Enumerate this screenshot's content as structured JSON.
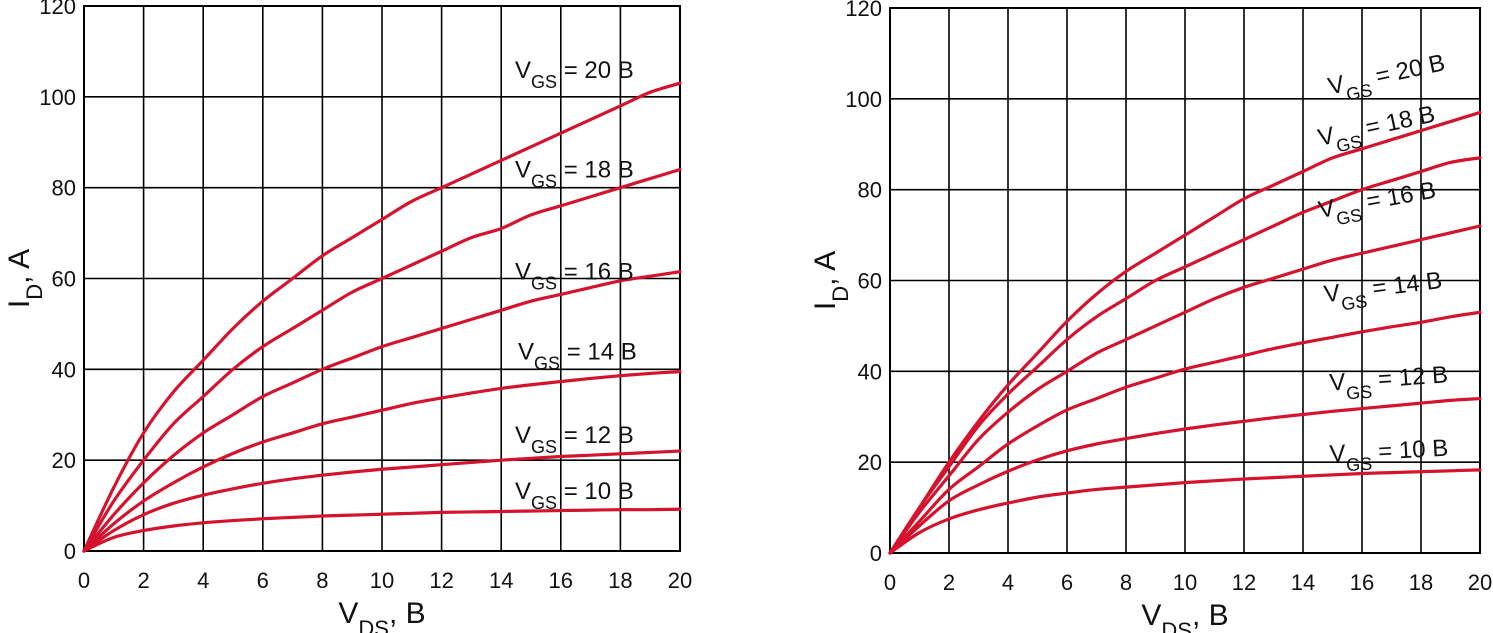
{
  "chart_data": [
    {
      "type": "line",
      "xlabel": "V",
      "xlabel_sub": "DS",
      "xlabel_unit": ", B",
      "ylabel": "I",
      "ylabel_sub": "D",
      "ylabel_unit": ", A",
      "xlim": [
        0,
        20
      ],
      "ylim": [
        0,
        120
      ],
      "x_ticks": [
        "0",
        "2",
        "4",
        "6",
        "8",
        "10",
        "12",
        "14",
        "16",
        "18",
        "20"
      ],
      "y_ticks": [
        "0",
        "20",
        "40",
        "60",
        "80",
        "100",
        "120"
      ],
      "grid": true,
      "line_color": "#d4132e",
      "series": [
        {
          "name": "V_GS = 20 B",
          "label_main": "V",
          "label_sub": "GS",
          "label_rest": " = 20 B",
          "x": [
            0,
            1,
            2,
            3,
            4,
            5,
            6,
            7,
            8,
            9,
            10,
            11,
            12,
            13,
            14,
            15,
            16,
            17,
            18,
            19,
            20
          ],
          "y": [
            0,
            14,
            26,
            35,
            42,
            49,
            55,
            60,
            65,
            69,
            73,
            77,
            80,
            83,
            86,
            89,
            92,
            95,
            98,
            101,
            103
          ]
        },
        {
          "name": "V_GS = 18 B",
          "label_main": "V",
          "label_sub": "GS",
          "label_rest": " = 18 B",
          "x": [
            0,
            1,
            2,
            3,
            4,
            5,
            6,
            7,
            8,
            9,
            10,
            11,
            12,
            13,
            14,
            15,
            16,
            17,
            18,
            19,
            20
          ],
          "y": [
            0,
            11,
            20,
            28,
            34,
            40,
            45,
            49,
            53,
            57,
            60,
            63,
            66,
            69,
            71,
            74,
            76,
            78,
            80,
            82,
            84
          ]
        },
        {
          "name": "V_GS = 16 B",
          "label_main": "V",
          "label_sub": "GS",
          "label_rest": " = 16 B",
          "x": [
            0,
            1,
            2,
            3,
            4,
            5,
            6,
            7,
            8,
            9,
            10,
            11,
            12,
            13,
            14,
            15,
            16,
            17,
            18,
            19,
            20
          ],
          "y": [
            0,
            8,
            15,
            21,
            26,
            30,
            34,
            37,
            40,
            42.5,
            45,
            47,
            49,
            51,
            53,
            55,
            56.5,
            58,
            59.5,
            60.5,
            61.5
          ]
        },
        {
          "name": "V_GS = 14 B",
          "label_main": "V",
          "label_sub": "GS",
          "label_rest": " = 14 B",
          "x": [
            0,
            1,
            2,
            3,
            4,
            5,
            6,
            7,
            8,
            9,
            10,
            11,
            12,
            13,
            14,
            15,
            16,
            17,
            18,
            19,
            20
          ],
          "y": [
            0,
            6,
            11,
            15,
            18.5,
            21.5,
            24,
            26,
            28,
            29.5,
            31,
            32.5,
            33.7,
            34.8,
            35.8,
            36.6,
            37.3,
            38,
            38.6,
            39.1,
            39.5
          ]
        },
        {
          "name": "V_GS = 12 B",
          "label_main": "V",
          "label_sub": "GS",
          "label_rest": " = 12 B",
          "x": [
            0,
            1,
            2,
            3,
            4,
            5,
            6,
            7,
            8,
            9,
            10,
            11,
            12,
            13,
            14,
            15,
            16,
            17,
            18,
            19,
            20
          ],
          "y": [
            0,
            4.5,
            8,
            10.5,
            12.3,
            13.7,
            14.9,
            15.9,
            16.7,
            17.4,
            18,
            18.5,
            19,
            19.5,
            20,
            20.4,
            20.8,
            21.1,
            21.4,
            21.7,
            22
          ]
        },
        {
          "name": "V_GS = 10 B",
          "label_main": "V",
          "label_sub": "GS",
          "label_rest": " = 10 B",
          "x": [
            0,
            1,
            2,
            3,
            4,
            5,
            6,
            7,
            8,
            9,
            10,
            11,
            12,
            13,
            14,
            15,
            16,
            17,
            18,
            19,
            20
          ],
          "y": [
            0,
            3,
            4.5,
            5.5,
            6.2,
            6.7,
            7.1,
            7.4,
            7.7,
            7.9,
            8.1,
            8.3,
            8.5,
            8.6,
            8.7,
            8.8,
            8.9,
            9,
            9.1,
            9.1,
            9.2
          ]
        }
      ]
    },
    {
      "type": "line",
      "xlabel": "V",
      "xlabel_sub": "DS",
      "xlabel_unit": ", B",
      "ylabel": "I",
      "ylabel_sub": "D",
      "ylabel_unit": ", A",
      "xlim": [
        0,
        20
      ],
      "ylim": [
        0,
        120
      ],
      "x_ticks": [
        "0",
        "2",
        "4",
        "6",
        "8",
        "10",
        "12",
        "14",
        "16",
        "18",
        "20"
      ],
      "y_ticks": [
        "0",
        "20",
        "40",
        "60",
        "80",
        "100",
        "120"
      ],
      "grid": true,
      "line_color": "#d4132e",
      "series": [
        {
          "name": "V_GS = 20 B",
          "label_main": "V",
          "label_sub": "GS",
          "label_rest": " = 20 B",
          "x": [
            0,
            1,
            2,
            3,
            4,
            5,
            6,
            7,
            8,
            9,
            10,
            11,
            12,
            13,
            14,
            15,
            16,
            17,
            18,
            19,
            20
          ],
          "y": [
            0,
            10,
            20,
            29,
            37,
            44,
            51,
            57,
            62,
            66,
            70,
            74,
            78,
            81,
            84,
            87,
            89,
            91,
            93,
            95,
            97
          ]
        },
        {
          "name": "V_GS = 18 B",
          "label_main": "V",
          "label_sub": "GS",
          "label_rest": " = 18 B",
          "x": [
            0,
            1,
            2,
            3,
            4,
            5,
            6,
            7,
            8,
            9,
            10,
            11,
            12,
            13,
            14,
            15,
            16,
            17,
            18,
            19,
            20
          ],
          "y": [
            0,
            10,
            19,
            28,
            35,
            41,
            47,
            52,
            56,
            60,
            63,
            66,
            69,
            72,
            75,
            77.5,
            80,
            82,
            84,
            86,
            87
          ]
        },
        {
          "name": "V_GS = 16 B",
          "label_main": "V",
          "label_sub": "GS",
          "label_rest": " = 16 B",
          "x": [
            0,
            1,
            2,
            3,
            4,
            5,
            6,
            7,
            8,
            9,
            10,
            11,
            12,
            13,
            14,
            15,
            16,
            17,
            18,
            19,
            20
          ],
          "y": [
            0,
            9,
            17,
            25,
            31,
            36,
            40,
            44,
            47,
            50,
            53,
            56,
            58.5,
            60.5,
            62.5,
            64.5,
            66,
            67.5,
            69,
            70.5,
            72
          ]
        },
        {
          "name": "V_GS = 14 B",
          "label_main": "V",
          "label_sub": "GS",
          "label_rest": " = 14 B",
          "x": [
            0,
            1,
            2,
            3,
            4,
            5,
            6,
            7,
            8,
            9,
            10,
            11,
            12,
            13,
            14,
            15,
            16,
            17,
            18,
            19,
            20
          ],
          "y": [
            0,
            7,
            14,
            19,
            24,
            28,
            31.5,
            34,
            36.5,
            38.5,
            40.5,
            42,
            43.5,
            45,
            46.3,
            47.5,
            48.7,
            49.8,
            50.8,
            52,
            53
          ]
        },
        {
          "name": "V_GS = 12 B",
          "label_main": "V",
          "label_sub": "GS",
          "label_rest": " = 12 B",
          "x": [
            0,
            1,
            2,
            3,
            4,
            5,
            6,
            7,
            8,
            9,
            10,
            11,
            12,
            13,
            14,
            15,
            16,
            17,
            18,
            19,
            20
          ],
          "y": [
            0,
            6,
            11.5,
            15,
            18,
            20.5,
            22.5,
            24,
            25.2,
            26.3,
            27.3,
            28.2,
            29,
            29.8,
            30.5,
            31.2,
            31.8,
            32.4,
            33,
            33.6,
            34
          ]
        },
        {
          "name": "V_GS = 10 B",
          "label_main": "V",
          "label_sub": "GS",
          "label_rest": " = 10 B",
          "x": [
            0,
            1,
            2,
            3,
            4,
            5,
            6,
            7,
            8,
            9,
            10,
            11,
            12,
            13,
            14,
            15,
            16,
            17,
            18,
            19,
            20
          ],
          "y": [
            0,
            4.5,
            7.5,
            9.5,
            11,
            12.3,
            13.2,
            14,
            14.5,
            15,
            15.5,
            15.9,
            16.3,
            16.6,
            16.9,
            17.2,
            17.5,
            17.7,
            17.9,
            18.1,
            18.3
          ]
        }
      ]
    }
  ]
}
